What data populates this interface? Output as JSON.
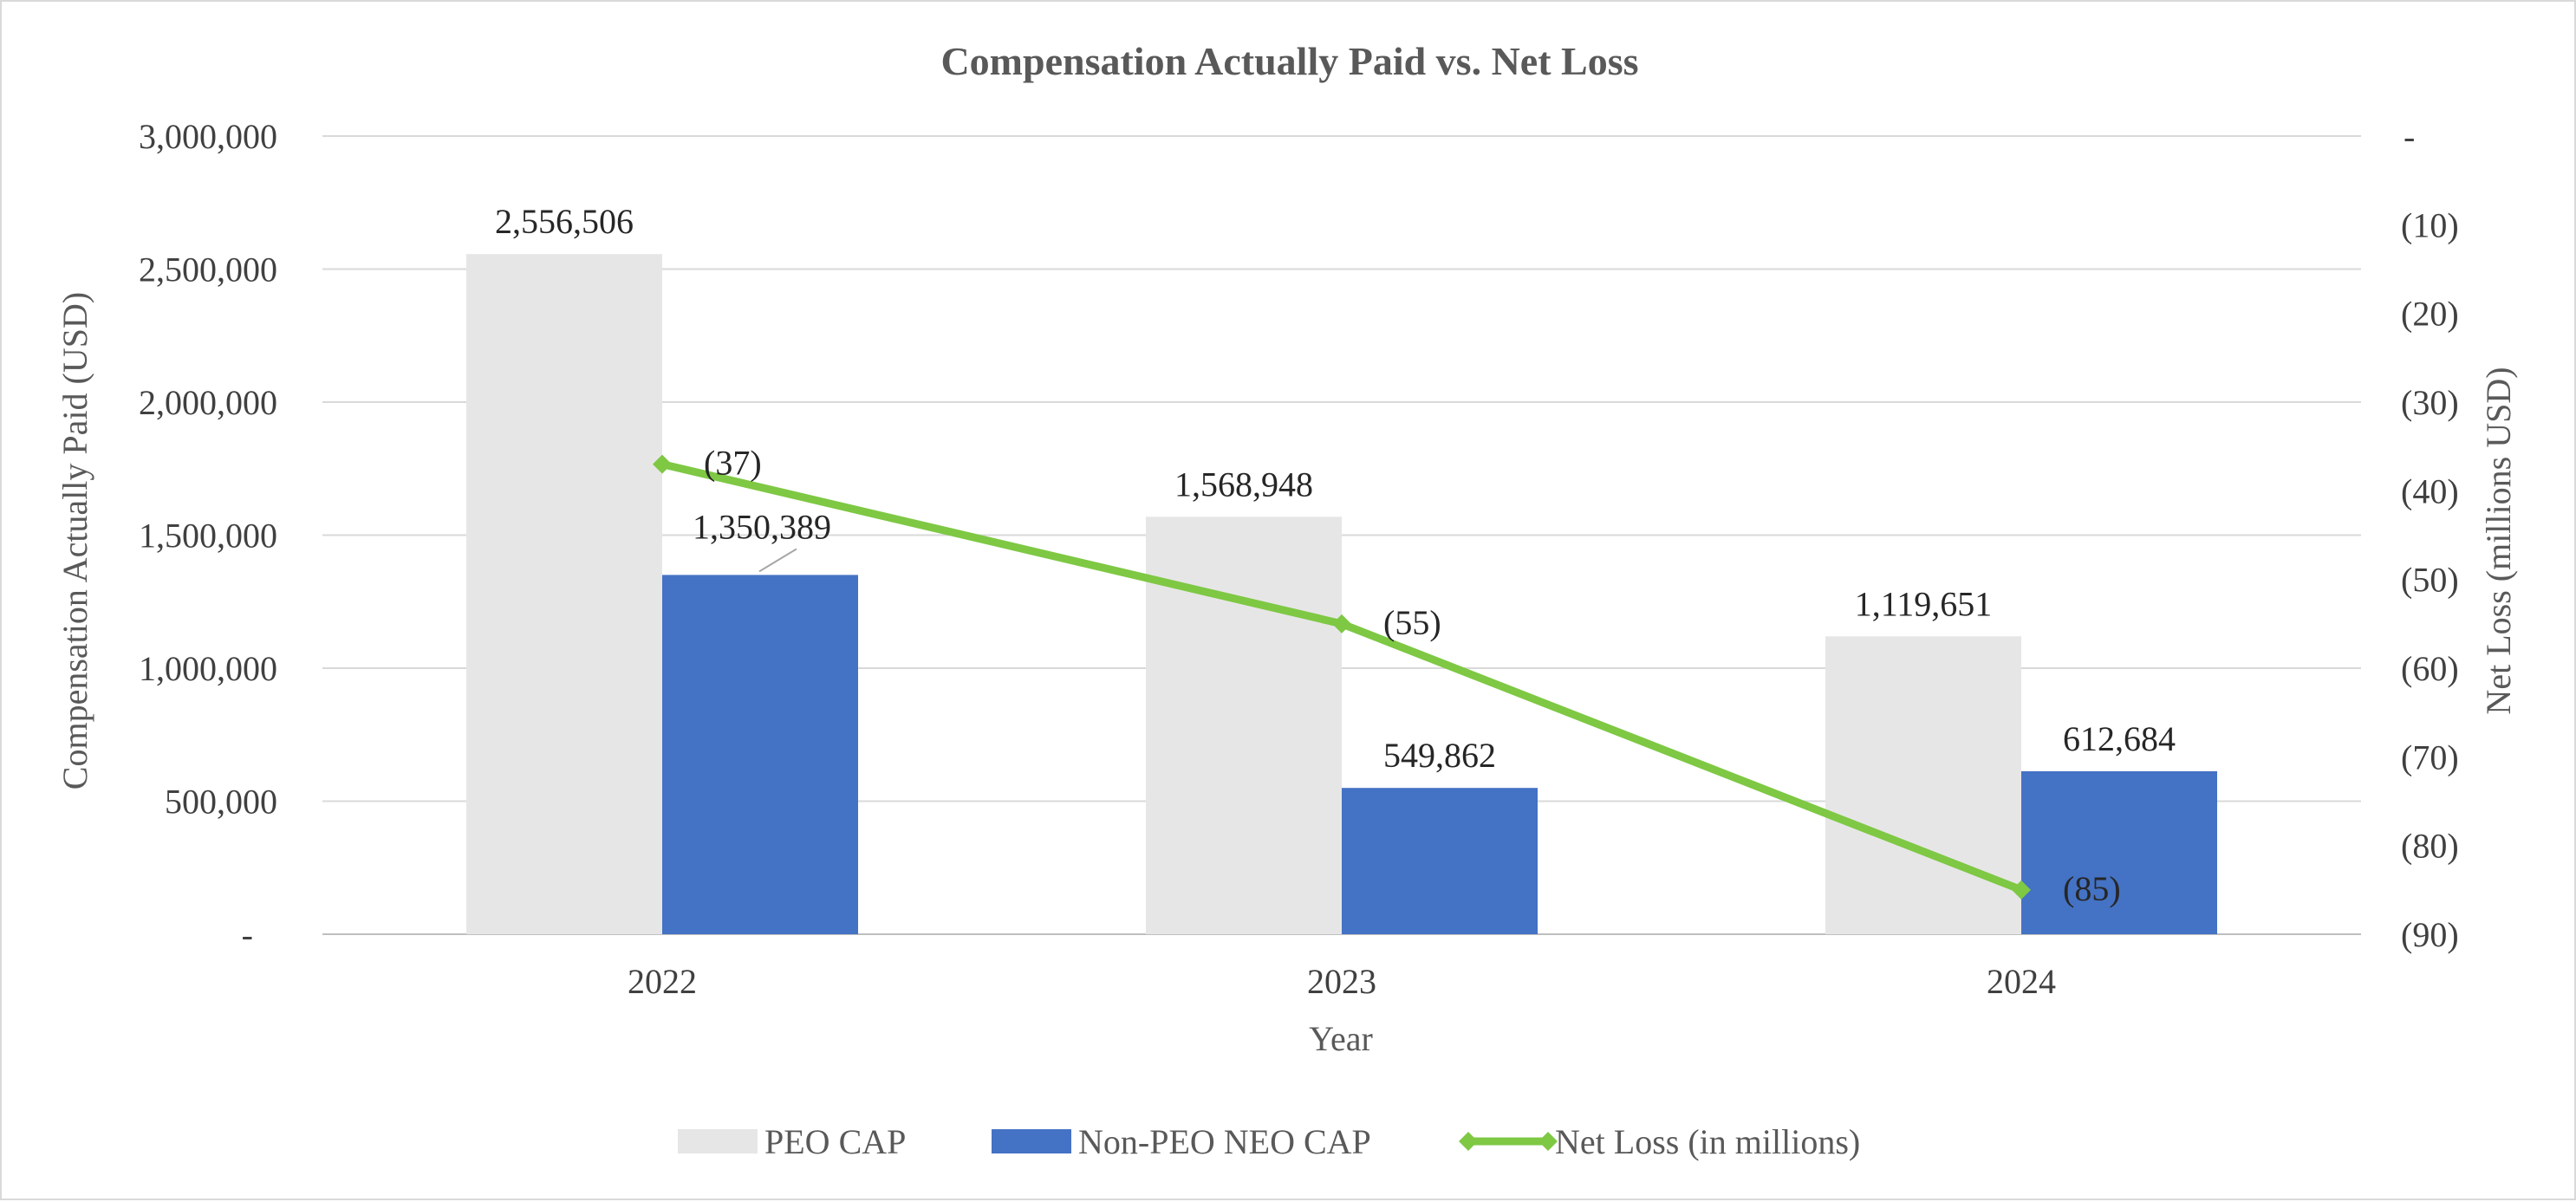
{
  "chart_data": {
    "type": "bar",
    "title": "Compensation Actually Paid vs. Net Loss",
    "xlabel": "Year",
    "ylabel": "Compensation Actually Paid (USD)",
    "y2label": "Net Loss (millions USD)",
    "categories": [
      "2022",
      "2023",
      "2024"
    ],
    "ylim": [
      0,
      3000000
    ],
    "y2lim": [
      -90,
      0
    ],
    "yticks": [
      {
        "value": 0,
        "label": "-"
      },
      {
        "value": 500000,
        "label": "500,000"
      },
      {
        "value": 1000000,
        "label": "1,000,000"
      },
      {
        "value": 1500000,
        "label": "1,500,000"
      },
      {
        "value": 2000000,
        "label": "2,000,000"
      },
      {
        "value": 2500000,
        "label": "2,500,000"
      },
      {
        "value": 3000000,
        "label": "3,000,000"
      }
    ],
    "y2ticks": [
      {
        "value": 0,
        "label": "-"
      },
      {
        "value": -10,
        "label": "(10)"
      },
      {
        "value": -20,
        "label": "(20)"
      },
      {
        "value": -30,
        "label": "(30)"
      },
      {
        "value": -40,
        "label": "(40)"
      },
      {
        "value": -50,
        "label": "(50)"
      },
      {
        "value": -60,
        "label": "(60)"
      },
      {
        "value": -70,
        "label": "(70)"
      },
      {
        "value": -80,
        "label": "(80)"
      },
      {
        "value": -90,
        "label": "(90)"
      }
    ],
    "grid": true,
    "legend_position": "bottom",
    "series": [
      {
        "name": "PEO CAP",
        "kind": "bar",
        "axis": "left",
        "color": "#e7e6e6",
        "values": [
          2556506,
          1568948,
          1119651
        ],
        "labels": [
          "2,556,506",
          "1,568,948",
          "1,119,651"
        ]
      },
      {
        "name": "Non-PEO NEO CAP",
        "kind": "bar",
        "axis": "left",
        "color": "#4472c4",
        "values": [
          1350389,
          549862,
          612684
        ],
        "labels": [
          "1,350,389",
          "549,862",
          "612,684"
        ]
      },
      {
        "name": "Net Loss (in millions)",
        "kind": "line",
        "axis": "right",
        "color": "#7ec844",
        "values": [
          -37,
          -55,
          -85
        ],
        "labels": [
          "(37)",
          "(55)",
          "(85)"
        ]
      }
    ]
  }
}
